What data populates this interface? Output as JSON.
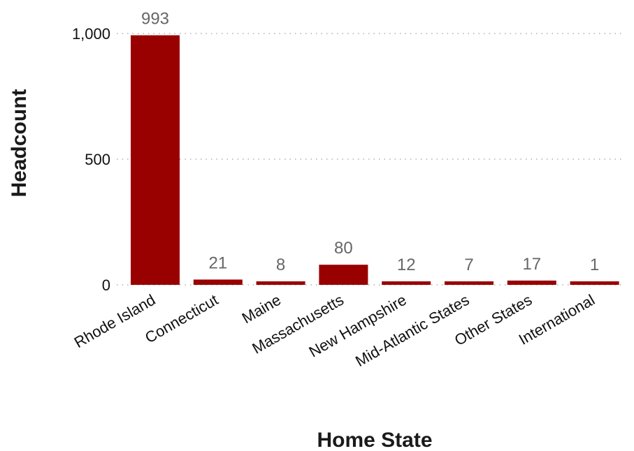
{
  "chart_data": {
    "type": "bar",
    "title": "",
    "xlabel": "Home State",
    "ylabel": "Headcount",
    "categories": [
      "Rhode Island",
      "Connecticut",
      "Maine",
      "Massachusetts",
      "New Hampshire",
      "Mid-Atlantic States",
      "Other States",
      "International"
    ],
    "values": [
      993,
      21,
      8,
      80,
      12,
      7,
      17,
      1
    ],
    "data_labels": [
      "993",
      "21",
      "8",
      "80",
      "12",
      "7",
      "17",
      "1"
    ],
    "ylim": [
      0,
      1000
    ],
    "yticks": [
      0,
      500,
      1000
    ],
    "ytick_labels": [
      "0",
      "500",
      "1,000"
    ],
    "grid": "horizontal dotted",
    "legend": "none",
    "bar_color": "#990000"
  }
}
